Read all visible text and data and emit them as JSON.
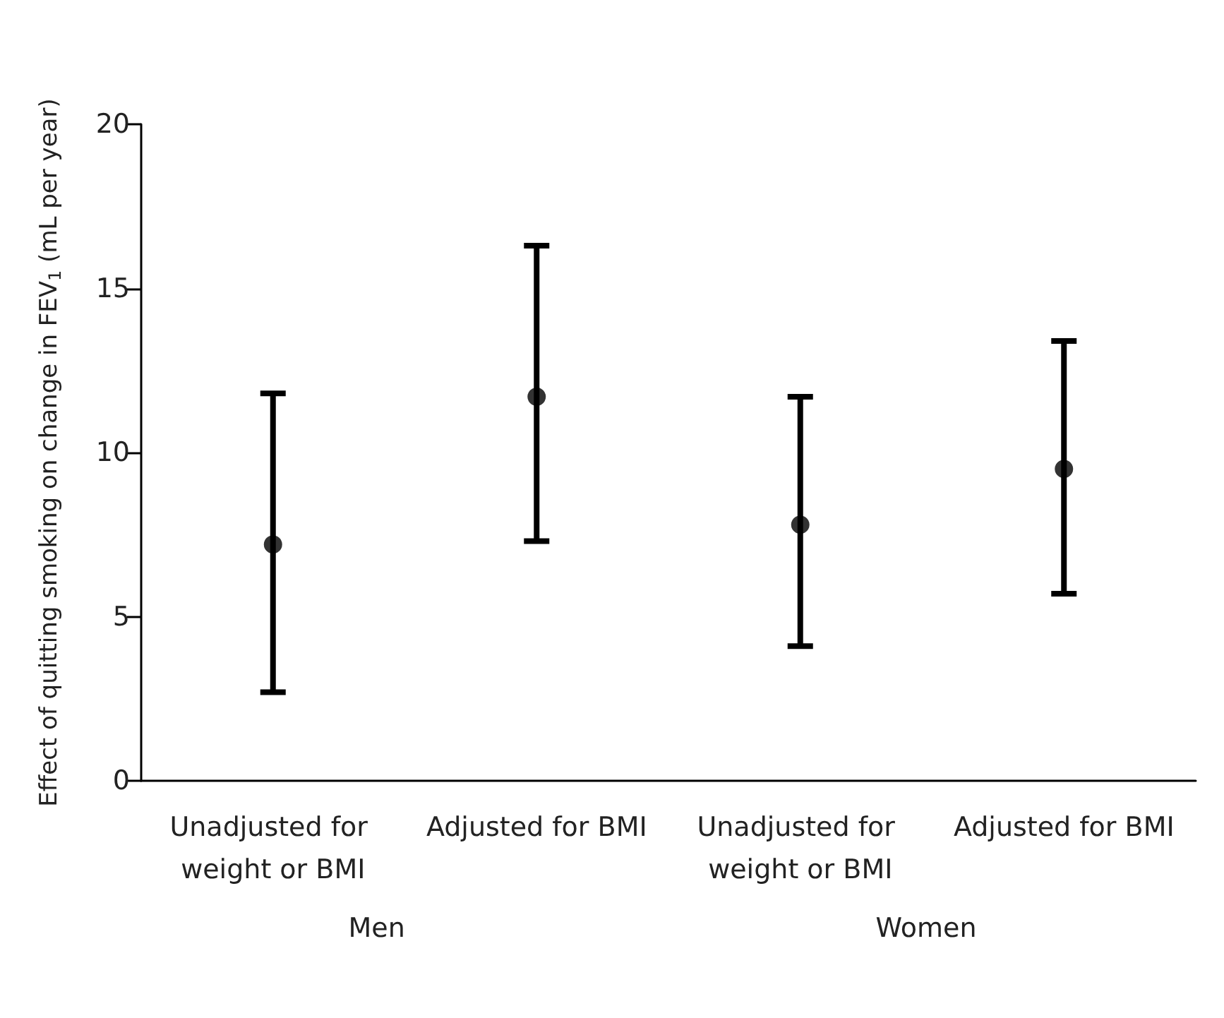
{
  "chart_data": {
    "type": "scatter",
    "ylabel": "Effect of quitting smoking on change in FEV$_{1}$ (mL per year)",
    "categories": [
      "Unadjusted for weight or BMI",
      "Adjusted for BMI",
      "Unadjusted for weight or BMI",
      "Adjusted for BMI"
    ],
    "values": [
      7.2,
      11.7,
      7.8,
      9.5
    ],
    "errors": [
      [
        2.7,
        11.8
      ],
      [
        7.3,
        16.3
      ],
      [
        4.1,
        11.7
      ],
      [
        5.7,
        13.4
      ]
    ],
    "color": "#000000",
    "marker": "circle",
    "grid": false,
    "ylim": [
      0,
      20
    ],
    "yticks": [
      0,
      5,
      10,
      15,
      20
    ],
    "annotations": [
      "Men",
      "Women"
    ]
  }
}
